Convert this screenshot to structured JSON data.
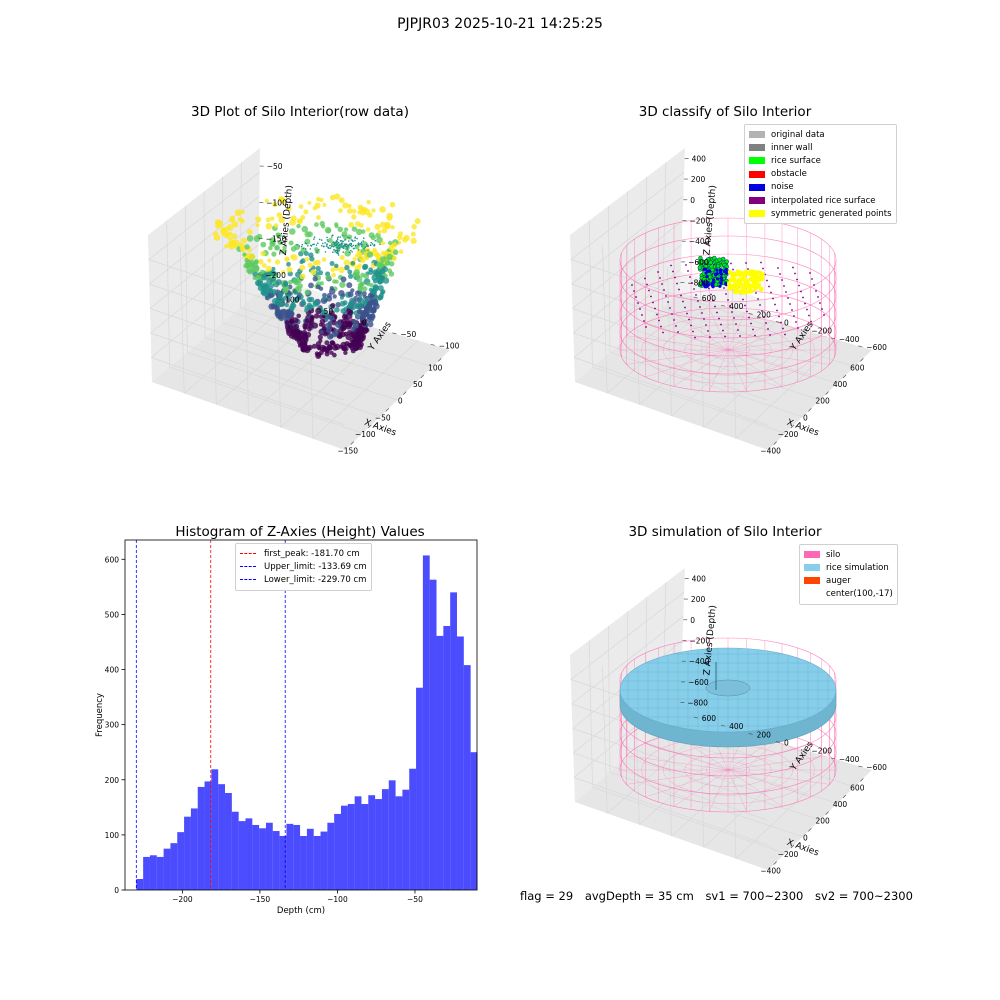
{
  "figure": {
    "suptitle": "PJPJR03 2025-10-21 14:25:25"
  },
  "raw_panel": {
    "title": "3D Plot of Silo Interior(row data)",
    "xlabel": "X Axies",
    "ylabel": "Y Axies",
    "zlabel": "Z Axies (Depth)",
    "x_ticks": [
      "−150",
      "−100",
      "−50",
      "0",
      "50",
      "100"
    ],
    "y_ticks": [
      "−100",
      "−50",
      "0",
      "50",
      "100"
    ],
    "z_ticks": [
      "−50",
      "−100",
      "−150",
      "−200"
    ],
    "colormap": [
      "#440154",
      "#3b528b",
      "#21918c",
      "#5ec962",
      "#fde725"
    ]
  },
  "classify_panel": {
    "title": "3D classify of Silo Interior",
    "xlabel": "X Axies",
    "ylabel": "Y Axies",
    "zlabel": "Z Axies (Depth)",
    "x_ticks": [
      "−400",
      "−200",
      "0",
      "200",
      "400",
      "600"
    ],
    "y_ticks": [
      "−600",
      "−400",
      "−200",
      "0",
      "200",
      "400",
      "600"
    ],
    "z_ticks": [
      "400",
      "200",
      "0",
      "−200",
      "−400",
      "−600",
      "−800"
    ],
    "legend": [
      {
        "label": "original data",
        "color": "#b3b3b3"
      },
      {
        "label": "inner wall",
        "color": "#808080"
      },
      {
        "label": "rice surface",
        "color": "#00ff00"
      },
      {
        "label": "obstacle",
        "color": "#ff0000"
      },
      {
        "label": "noise",
        "color": "#0000e0"
      },
      {
        "label": "interpolated rice surface",
        "color": "#800080"
      },
      {
        "label": "symmetric generated points",
        "color": "#ffff00"
      }
    ]
  },
  "histogram_panel": {
    "title": "Histogram of Z-Axies (Height) Values",
    "xlabel": "Depth (cm)",
    "ylabel": "Frequency",
    "legend": [
      {
        "label": "first_peak: -181.70 cm",
        "color": "#ff0000"
      },
      {
        "label": "Upper_limit: -133.69 cm",
        "color": "#0000ff"
      },
      {
        "label": "Lower_limit: -229.70 cm",
        "color": "#0000ff"
      }
    ]
  },
  "simulation_panel": {
    "title": "3D simulation of Silo Interior",
    "xlabel": "X Axies",
    "ylabel": "Y Axies",
    "zlabel": "Z Axies (Depth)",
    "x_ticks": [
      "−400",
      "−200",
      "0",
      "200",
      "400",
      "600"
    ],
    "y_ticks": [
      "−600",
      "−400",
      "−200",
      "0",
      "200",
      "400",
      "600"
    ],
    "z_ticks": [
      "400",
      "200",
      "0",
      "−200",
      "−400",
      "−600",
      "−800"
    ],
    "legend": [
      {
        "label": "silo",
        "color": "#ff69b4"
      },
      {
        "label": "rice simulation",
        "color": "#87ceeb"
      },
      {
        "label": "auger",
        "color": "#ff4500"
      },
      {
        "label": "center(100,-17)",
        "color": ""
      }
    ]
  },
  "status": {
    "flag": "flag = 29",
    "avg_depth": "avgDepth = 35 cm",
    "sv1": "sv1 = 700~2300",
    "sv2": "sv2 = 700~2300"
  },
  "chart_data": {
    "type": "bar",
    "title": "Histogram of Z-Axies (Height) Values",
    "xlabel": "Depth (cm)",
    "ylabel": "Frequency",
    "xlim": [
      -237,
      -10
    ],
    "ylim": [
      0,
      635
    ],
    "x_ticks": [
      -200,
      -150,
      -100,
      -50
    ],
    "y_ticks": [
      0,
      100,
      200,
      300,
      400,
      500,
      600
    ],
    "bin_start": -229.7,
    "bin_width": 4.4,
    "values": [
      20,
      60,
      63,
      60,
      75,
      85,
      105,
      133,
      148,
      187,
      197,
      219,
      192,
      176,
      142,
      125,
      130,
      118,
      112,
      122,
      107,
      98,
      120,
      118,
      98,
      111,
      98,
      106,
      122,
      138,
      153,
      156,
      170,
      156,
      172,
      165,
      183,
      199,
      170,
      182,
      220,
      367,
      607,
      563,
      461,
      479,
      540,
      460,
      408,
      250
    ],
    "color": "#0000ff",
    "vlines": [
      {
        "x": -181.7,
        "color": "#ff0000",
        "label": "first_peak: -181.70 cm"
      },
      {
        "x": -133.69,
        "color": "#0000ff",
        "label": "Upper_limit: -133.69 cm"
      },
      {
        "x": -229.7,
        "color": "#0000ff",
        "label": "Lower_limit: -229.70 cm"
      }
    ],
    "legend_position": "upper center"
  }
}
